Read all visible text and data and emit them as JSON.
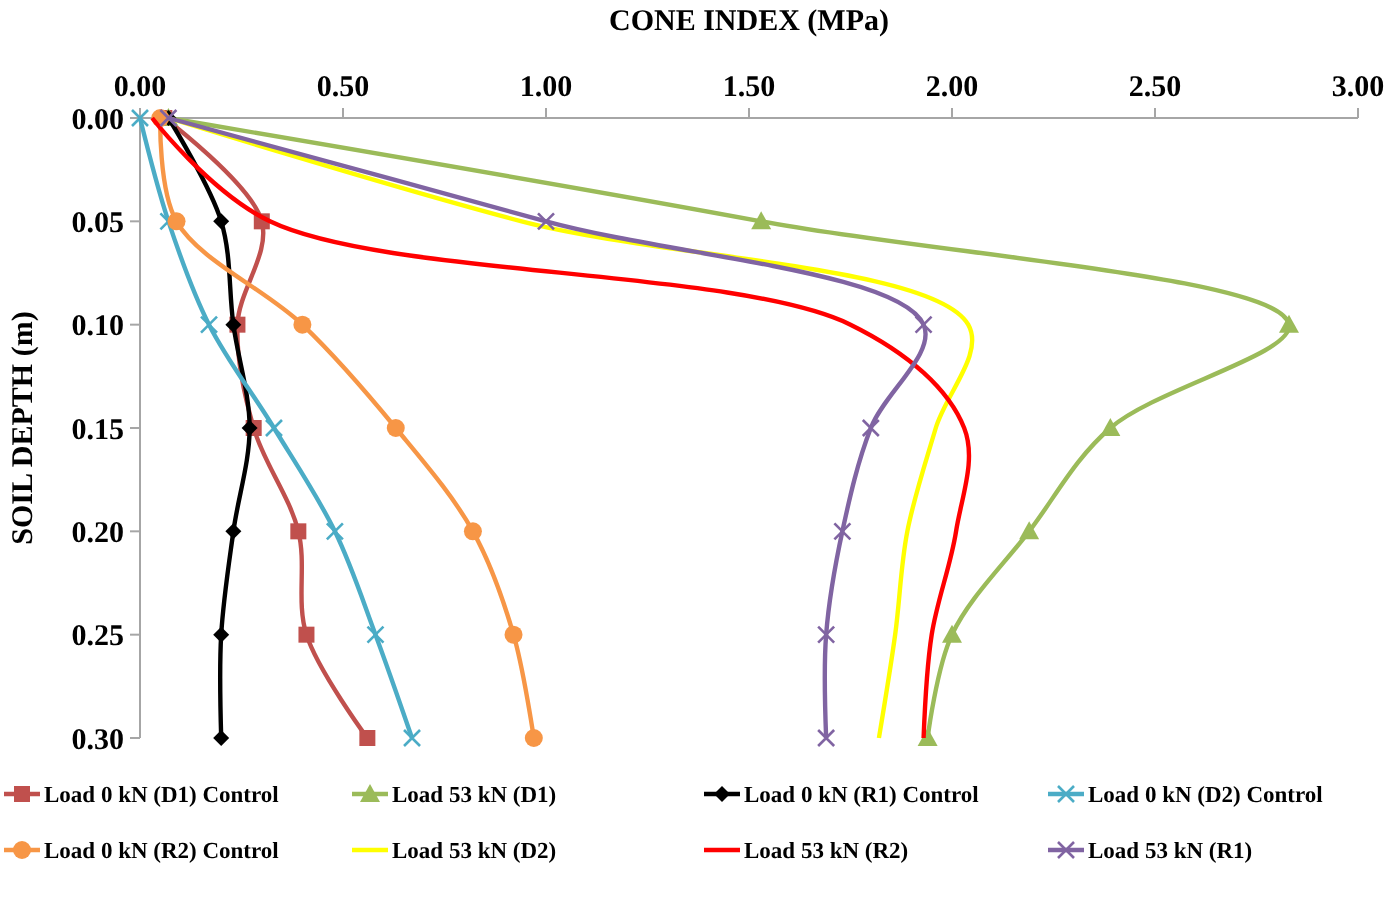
{
  "chart_data": {
    "type": "line",
    "xlabel": "CONE INDEX (MPa)",
    "ylabel": "SOIL DEPTH (m)",
    "xlim": [
      0,
      3
    ],
    "xticks": [
      {
        "value": 0,
        "label": "0.00"
      },
      {
        "value": 0.5,
        "label": "0.50"
      },
      {
        "value": 1,
        "label": "1.00"
      },
      {
        "value": 1.5,
        "label": "1.50"
      },
      {
        "value": 2,
        "label": "2.00"
      },
      {
        "value": 2.5,
        "label": "2.50"
      },
      {
        "value": 3,
        "label": "3.00"
      }
    ],
    "ylim": [
      0.3,
      0
    ],
    "yticks": [
      {
        "value": 0,
        "label": "0.00"
      },
      0.05,
      {
        "value": 0.1,
        "label": "0.10"
      },
      0.15,
      {
        "value": 0.2,
        "label": "0.20"
      },
      0.25,
      {
        "value": 0.3,
        "label": "0.30"
      }
    ],
    "grid": false,
    "legend": "bottom",
    "line_style": "solid",
    "series": [
      {
        "name": "Load 0 kN (D1) Control",
        "color": "#c0504d",
        "marker": "square",
        "x": [
          0.06,
          0.3,
          0.24,
          0.28,
          0.39,
          0.41,
          0.56
        ],
        "values": [
          0,
          0.05,
          0.1,
          0.15,
          0.2,
          0.25,
          0.3
        ]
      },
      {
        "name": "Load 53 kN (D1)",
        "color": "#9bbb59",
        "marker": "triangle",
        "x": [
          0.07,
          1.53,
          2.83,
          2.39,
          2.19,
          2.0,
          1.94
        ],
        "values": [
          0,
          0.05,
          0.1,
          0.15,
          0.2,
          0.25,
          0.3
        ]
      },
      {
        "name": "Load 0 kN (R1) Control",
        "color": "#000000",
        "marker": "diamond",
        "x": [
          0.07,
          0.2,
          0.23,
          0.27,
          0.23,
          0.2,
          0.2
        ],
        "values": [
          0,
          0.05,
          0.1,
          0.15,
          0.2,
          0.25,
          0.3
        ]
      },
      {
        "name": "Load 0 kN (D2) Control",
        "color": "#4bacc6",
        "marker": "cross",
        "x": [
          0.0,
          0.07,
          0.17,
          0.33,
          0.48,
          0.58,
          0.67
        ],
        "values": [
          0,
          0.05,
          0.1,
          0.15,
          0.2,
          0.25,
          0.3
        ]
      },
      {
        "name": "Load 0 kN (R2) Control",
        "color": "#f79646",
        "marker": "circle",
        "x": [
          0.05,
          0.09,
          0.4,
          0.63,
          0.82,
          0.92,
          0.97
        ],
        "values": [
          0,
          0.05,
          0.1,
          0.15,
          0.2,
          0.25,
          0.3
        ]
      },
      {
        "name": "Load 53 kN (D2)",
        "color": "#ffff00",
        "marker": "none",
        "x": [
          0.07,
          0.94,
          2.04,
          1.96,
          1.89,
          1.86,
          1.82
        ],
        "values": [
          0,
          0.05,
          0.1,
          0.15,
          0.2,
          0.25,
          0.3
        ]
      },
      {
        "name": "Load 53 kN (R2)",
        "color": "#ff0000",
        "marker": "none",
        "x": [
          0.03,
          0.32,
          1.75,
          2.03,
          2.01,
          1.95,
          1.93
        ],
        "values": [
          0,
          0.05,
          0.1,
          0.15,
          0.2,
          0.25,
          0.3
        ]
      },
      {
        "name": "Load 53 kN (R1)",
        "color": "#8064a2",
        "marker": "cross",
        "x": [
          0.07,
          1.0,
          1.93,
          1.8,
          1.73,
          1.69,
          1.69
        ],
        "values": [
          0,
          0.05,
          0.1,
          0.15,
          0.2,
          0.25,
          0.3
        ]
      }
    ]
  }
}
